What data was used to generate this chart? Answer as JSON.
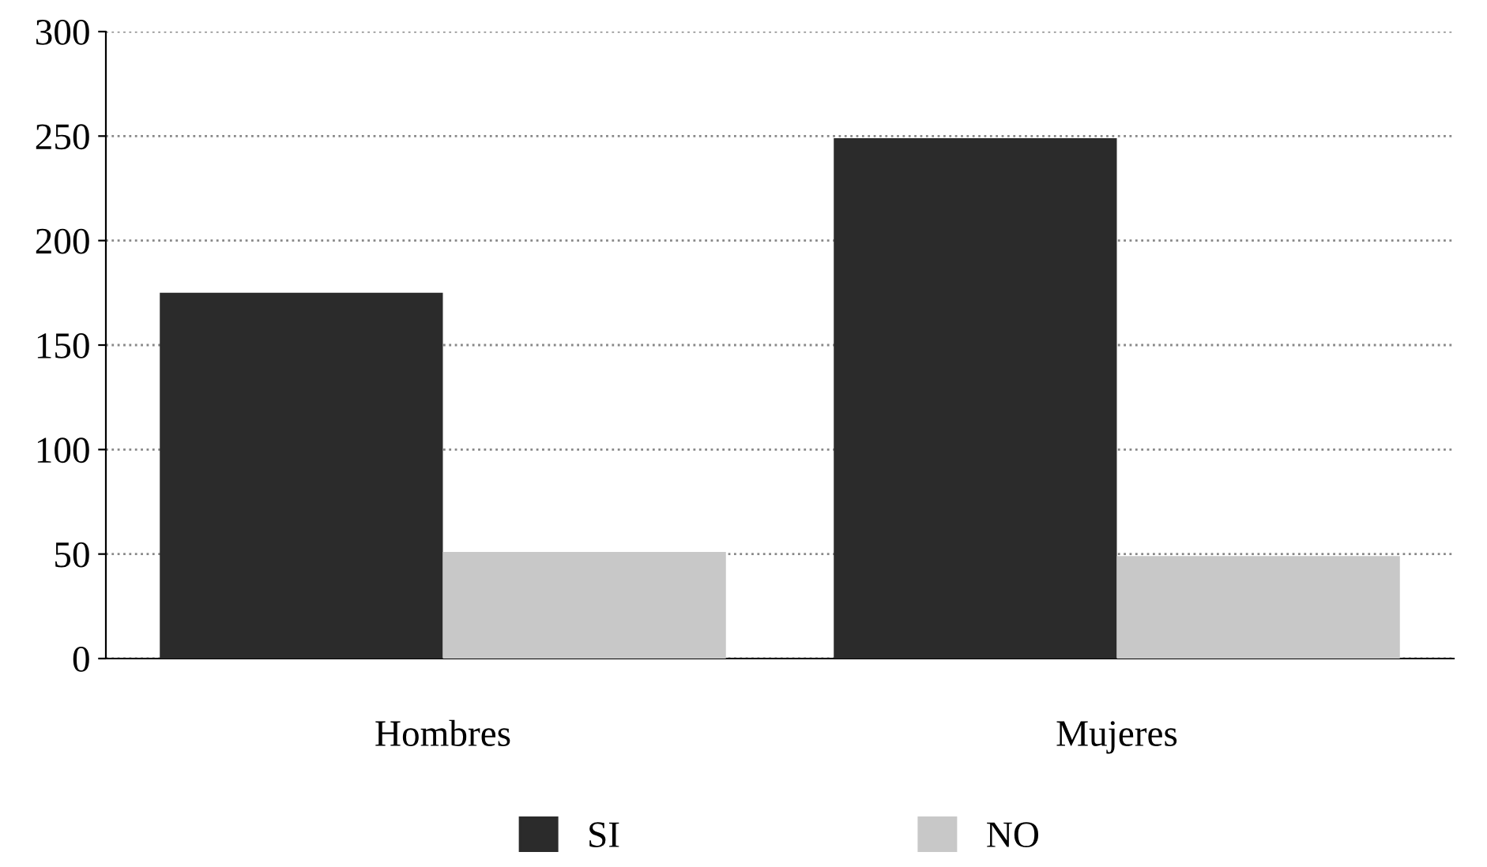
{
  "chart_data": {
    "type": "bar",
    "categories": [
      "Hombres",
      "Mujeres"
    ],
    "series": [
      {
        "name": "SI",
        "color": "#2b2b2b",
        "values": [
          175,
          249
        ]
      },
      {
        "name": "NO",
        "color": "#c8c8c8",
        "values": [
          51,
          49
        ]
      }
    ],
    "ylim": [
      0,
      300
    ],
    "yticks": [
      0,
      50,
      100,
      150,
      200,
      250,
      300
    ],
    "grid": "y",
    "legend": "bottom"
  }
}
